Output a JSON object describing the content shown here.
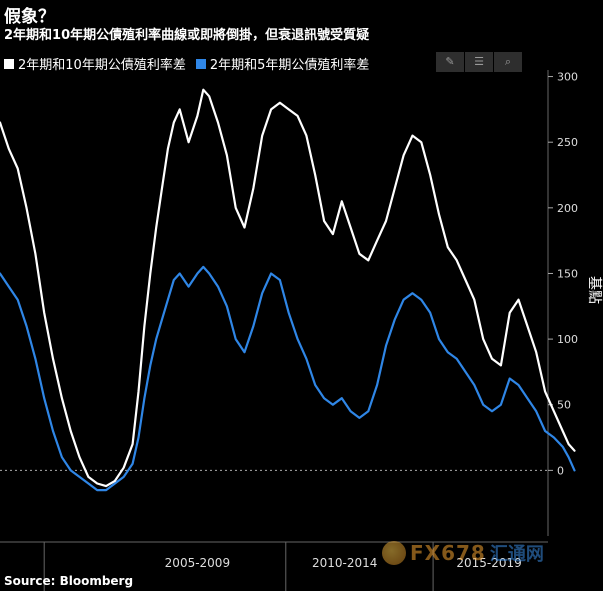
{
  "title": "假象？",
  "subtitle": "2年期和10年期公債殖利率曲線或即將倒掛，但衰退訊號受質疑",
  "source": "Source: Bloomberg",
  "watermark": {
    "latin": "FX678",
    "cn": "汇通网"
  },
  "colors": {
    "background": "#000000",
    "series_2s10s": "#ffffff",
    "series_2s5s": "#2f86e6",
    "grid": "#555555",
    "zero_line": "#aaaaaa"
  },
  "toolbar": [
    {
      "name": "draw-icon",
      "glyph": "✎"
    },
    {
      "name": "list-icon",
      "glyph": "☰"
    },
    {
      "name": "search-icon",
      "glyph": "⌕"
    }
  ],
  "chart_data": {
    "type": "line",
    "title": "假象？",
    "subtitle": "2年期和10年期公債殖利率曲線或即將倒掛，但衰退訊號受質疑",
    "ylabel": "基點",
    "ylim": [
      -50,
      305
    ],
    "xlim": [
      2000.3,
      2018.9
    ],
    "yticks": [
      0,
      50,
      100,
      150,
      200,
      250,
      300
    ],
    "xtick_labels": [
      "2005-2009",
      "2010-2014",
      "2015-2019"
    ],
    "xtick_label_centers": [
      2007.0,
      2012.0,
      2016.9
    ],
    "xtick_dividers": [
      2001.8,
      2010.0,
      2015.0
    ],
    "reference_line": 0,
    "legend_position": "top-left",
    "grid": false,
    "series": [
      {
        "name": "2年期和10年期公債殖利率差",
        "color": "#ffffff",
        "points": [
          [
            2000.3,
            265
          ],
          [
            2000.6,
            245
          ],
          [
            2000.9,
            230
          ],
          [
            2001.2,
            200
          ],
          [
            2001.5,
            165
          ],
          [
            2001.8,
            120
          ],
          [
            2002.1,
            85
          ],
          [
            2002.4,
            55
          ],
          [
            2002.7,
            30
          ],
          [
            2003.0,
            10
          ],
          [
            2003.3,
            -5
          ],
          [
            2003.6,
            -10
          ],
          [
            2003.9,
            -12
          ],
          [
            2004.2,
            -8
          ],
          [
            2004.5,
            2
          ],
          [
            2004.8,
            20
          ],
          [
            2005.0,
            60
          ],
          [
            2005.2,
            110
          ],
          [
            2005.4,
            150
          ],
          [
            2005.6,
            185
          ],
          [
            2005.8,
            215
          ],
          [
            2006.0,
            245
          ],
          [
            2006.2,
            265
          ],
          [
            2006.4,
            275
          ],
          [
            2006.7,
            250
          ],
          [
            2007.0,
            270
          ],
          [
            2007.2,
            290
          ],
          [
            2007.4,
            285
          ],
          [
            2007.7,
            265
          ],
          [
            2008.0,
            240
          ],
          [
            2008.3,
            200
          ],
          [
            2008.6,
            185
          ],
          [
            2008.9,
            215
          ],
          [
            2009.2,
            255
          ],
          [
            2009.5,
            275
          ],
          [
            2009.8,
            280
          ],
          [
            2010.1,
            275
          ],
          [
            2010.4,
            270
          ],
          [
            2010.7,
            255
          ],
          [
            2011.0,
            225
          ],
          [
            2011.3,
            190
          ],
          [
            2011.6,
            180
          ],
          [
            2011.9,
            205
          ],
          [
            2012.2,
            185
          ],
          [
            2012.5,
            165
          ],
          [
            2012.8,
            160
          ],
          [
            2013.1,
            175
          ],
          [
            2013.4,
            190
          ],
          [
            2013.7,
            215
          ],
          [
            2014.0,
            240
          ],
          [
            2014.3,
            255
          ],
          [
            2014.6,
            250
          ],
          [
            2014.9,
            225
          ],
          [
            2015.2,
            195
          ],
          [
            2015.5,
            170
          ],
          [
            2015.8,
            160
          ],
          [
            2016.1,
            145
          ],
          [
            2016.4,
            130
          ],
          [
            2016.7,
            100
          ],
          [
            2017.0,
            85
          ],
          [
            2017.3,
            80
          ],
          [
            2017.6,
            120
          ],
          [
            2017.9,
            130
          ],
          [
            2018.2,
            110
          ],
          [
            2018.5,
            90
          ],
          [
            2018.8,
            60
          ],
          [
            2019.1,
            45
          ],
          [
            2019.4,
            30
          ],
          [
            2019.6,
            20
          ],
          [
            2019.8,
            15
          ]
        ]
      },
      {
        "name": "2年期和5年期公債殖利率差",
        "color": "#2f86e6",
        "points": [
          [
            2000.3,
            150
          ],
          [
            2000.6,
            140
          ],
          [
            2000.9,
            130
          ],
          [
            2001.2,
            110
          ],
          [
            2001.5,
            85
          ],
          [
            2001.8,
            55
          ],
          [
            2002.1,
            30
          ],
          [
            2002.4,
            10
          ],
          [
            2002.7,
            0
          ],
          [
            2003.0,
            -5
          ],
          [
            2003.3,
            -10
          ],
          [
            2003.6,
            -15
          ],
          [
            2003.9,
            -15
          ],
          [
            2004.2,
            -10
          ],
          [
            2004.5,
            -5
          ],
          [
            2004.8,
            5
          ],
          [
            2005.0,
            25
          ],
          [
            2005.2,
            55
          ],
          [
            2005.4,
            80
          ],
          [
            2005.6,
            100
          ],
          [
            2005.8,
            115
          ],
          [
            2006.0,
            130
          ],
          [
            2006.2,
            145
          ],
          [
            2006.4,
            150
          ],
          [
            2006.7,
            140
          ],
          [
            2007.0,
            150
          ],
          [
            2007.2,
            155
          ],
          [
            2007.4,
            150
          ],
          [
            2007.7,
            140
          ],
          [
            2008.0,
            125
          ],
          [
            2008.3,
            100
          ],
          [
            2008.6,
            90
          ],
          [
            2008.9,
            110
          ],
          [
            2009.2,
            135
          ],
          [
            2009.5,
            150
          ],
          [
            2009.8,
            145
          ],
          [
            2010.1,
            120
          ],
          [
            2010.4,
            100
          ],
          [
            2010.7,
            85
          ],
          [
            2011.0,
            65
          ],
          [
            2011.3,
            55
          ],
          [
            2011.6,
            50
          ],
          [
            2011.9,
            55
          ],
          [
            2012.2,
            45
          ],
          [
            2012.5,
            40
          ],
          [
            2012.8,
            45
          ],
          [
            2013.1,
            65
          ],
          [
            2013.4,
            95
          ],
          [
            2013.7,
            115
          ],
          [
            2014.0,
            130
          ],
          [
            2014.3,
            135
          ],
          [
            2014.6,
            130
          ],
          [
            2014.9,
            120
          ],
          [
            2015.2,
            100
          ],
          [
            2015.5,
            90
          ],
          [
            2015.8,
            85
          ],
          [
            2016.1,
            75
          ],
          [
            2016.4,
            65
          ],
          [
            2016.7,
            50
          ],
          [
            2017.0,
            45
          ],
          [
            2017.3,
            50
          ],
          [
            2017.6,
            70
          ],
          [
            2017.9,
            65
          ],
          [
            2018.2,
            55
          ],
          [
            2018.5,
            45
          ],
          [
            2018.8,
            30
          ],
          [
            2019.1,
            25
          ],
          [
            2019.4,
            18
          ],
          [
            2019.6,
            10
          ],
          [
            2019.8,
            0
          ]
        ]
      }
    ]
  }
}
